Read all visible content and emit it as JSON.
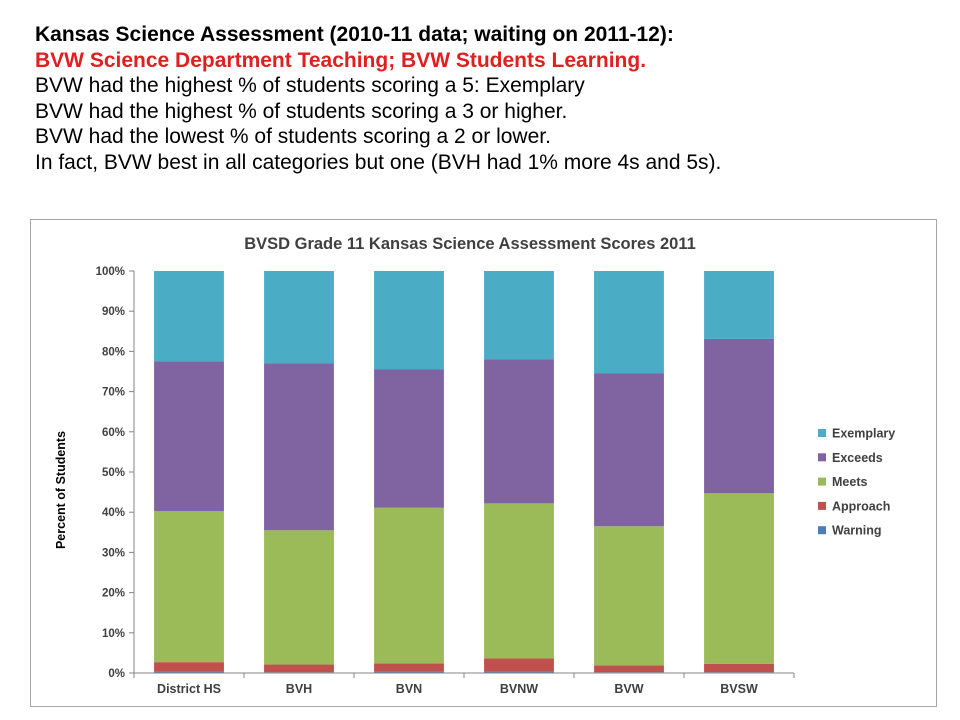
{
  "header": {
    "lines": [
      "Kansas Science Assessment (2010-11 data; waiting on 2011-12):",
      "BVW Science Department Teaching; BVW Students Learning.",
      "BVW had the highest % of students scoring a 5: Exemplary",
      "BVW had the highest % of students scoring a 3 or higher.",
      "BVW had the lowest % of students scoring a 2 or lower.",
      "In fact, BVW best in all categories but one (BVH had 1% more 4s and 5s)."
    ],
    "colors": {
      "highlight": "#e02020",
      "text": "#000000"
    }
  },
  "chart_data": {
    "type": "bar",
    "stacked": true,
    "title": "BVSD Grade 11 Kansas Science Assessment Scores 2011",
    "xlabel": "",
    "ylabel": "Percent of Students",
    "ylim": [
      0,
      100
    ],
    "yticks": [
      "0%",
      "10%",
      "20%",
      "30%",
      "40%",
      "50%",
      "60%",
      "70%",
      "80%",
      "90%",
      "100%"
    ],
    "categories": [
      "District HS",
      "BVH",
      "BVN",
      "BVNW",
      "BVW",
      "BVSW"
    ],
    "series": [
      {
        "name": "Warning",
        "color": "#4a7ebb",
        "values": [
          0.3,
          0.2,
          0.3,
          0.3,
          0.2,
          0.2
        ]
      },
      {
        "name": "Approach",
        "color": "#c0504d",
        "values": [
          2.4,
          1.9,
          2.1,
          3.3,
          1.7,
          2.1
        ]
      },
      {
        "name": "Meets",
        "color": "#9bbb59",
        "values": [
          37.6,
          33.4,
          38.7,
          38.6,
          34.6,
          42.4
        ]
      },
      {
        "name": "Exceeds",
        "color": "#8064a2",
        "values": [
          37.2,
          41.5,
          34.4,
          35.8,
          38.1,
          38.4
        ]
      },
      {
        "name": "Exemplary",
        "color": "#4bacc6",
        "values": [
          22.5,
          23.0,
          24.5,
          22.0,
          25.4,
          16.9
        ]
      }
    ],
    "legend_order": [
      "Exemplary",
      "Exceeds",
      "Meets",
      "Approach",
      "Warning"
    ],
    "legend_position": "right",
    "grid": false
  }
}
